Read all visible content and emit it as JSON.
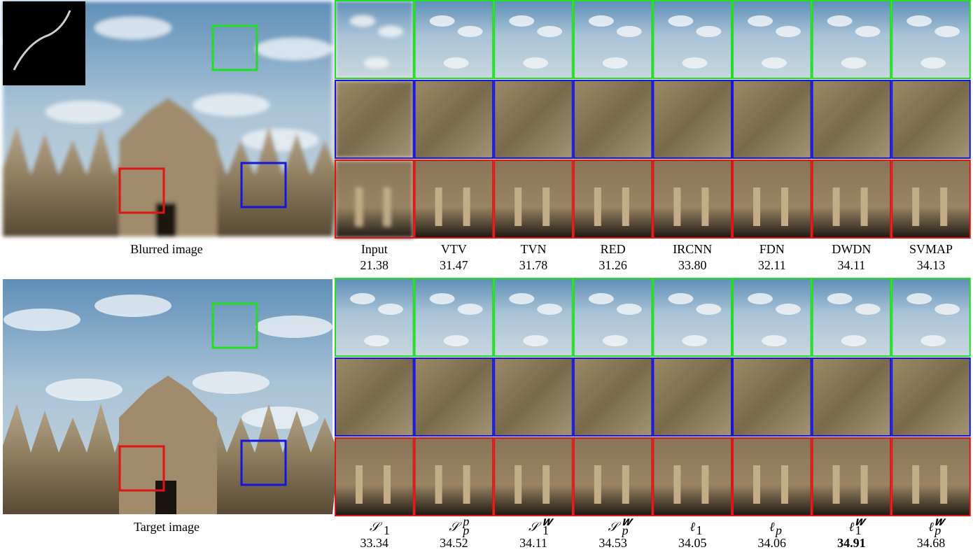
{
  "panels": [
    {
      "caption": "Blurred image",
      "methods": [
        {
          "name": {
            "text": "Input"
          },
          "psnr": "21.38"
        },
        {
          "name": {
            "text": "VTV"
          },
          "psnr": "31.47"
        },
        {
          "name": {
            "text": "TVN"
          },
          "psnr": "31.78"
        },
        {
          "name": {
            "text": "RED"
          },
          "psnr": "31.26"
        },
        {
          "name": {
            "text": "IRCNN"
          },
          "psnr": "33.80"
        },
        {
          "name": {
            "text": "FDN"
          },
          "psnr": "32.11"
        },
        {
          "name": {
            "text": "DWDN"
          },
          "psnr": "34.11"
        },
        {
          "name": {
            "text": "SVMAP"
          },
          "psnr": "34.13"
        }
      ]
    },
    {
      "caption": "Target image",
      "methods": [
        {
          "name": {
            "text": "𝒮",
            "sub": "1"
          },
          "psnr": "33.34"
        },
        {
          "name": {
            "text": "𝒮",
            "sub": "p",
            "sup": "p"
          },
          "psnr": "34.52"
        },
        {
          "name": {
            "text": "𝒮",
            "sub": "1",
            "sup": "𝒘"
          },
          "psnr": "34.11"
        },
        {
          "name": {
            "text": "𝒮",
            "sub": "p",
            "sup": "𝒘"
          },
          "psnr": "34.53"
        },
        {
          "name": {
            "text": "ℓ",
            "sub": "1"
          },
          "psnr": "34.05"
        },
        {
          "name": {
            "text": "ℓ",
            "sub": "p"
          },
          "psnr": "34.06"
        },
        {
          "name": {
            "text": "ℓ",
            "sub": "1",
            "sup": "𝒘"
          },
          "psnr": "34.91",
          "bold": true
        },
        {
          "name": {
            "text": "ℓ",
            "sub": "p",
            "sup": "𝒘"
          },
          "psnr": "34.68"
        }
      ]
    }
  ]
}
